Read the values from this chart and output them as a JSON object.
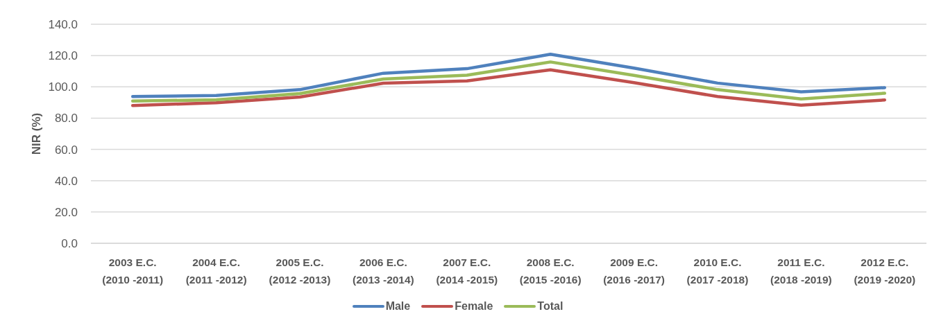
{
  "chart_data": {
    "type": "line",
    "ylabel": "NIR (%)",
    "categories": [
      "2003 E.C. (2010 -2011)",
      "2004 E.C. (2011 -2012)",
      "2005 E.C. (2012 -2013)",
      "2006 E.C. (2013 -2014)",
      "2007 E.C. (2014 -2015)",
      "2008 E.C. (2015 -2016)",
      "2009 E.C. (2016 -2017)",
      "2010 E.C. (2017 -2018)",
      "2011 E.C. (2018 -2019)",
      "2012 E.C. (2019 -2020)"
    ],
    "series": [
      {
        "name": "Male",
        "color": "#4f81bd",
        "values": [
          93.8,
          94.5,
          98.2,
          108.7,
          111.6,
          120.8,
          112.0,
          102.4,
          96.8,
          99.5
        ]
      },
      {
        "name": "Female",
        "color": "#c0504d",
        "values": [
          88.1,
          89.8,
          93.5,
          102.3,
          103.8,
          110.9,
          102.7,
          93.8,
          88.3,
          91.6
        ]
      },
      {
        "name": "Total",
        "color": "#9bbb59",
        "values": [
          90.9,
          91.7,
          95.7,
          105.0,
          107.4,
          115.9,
          107.3,
          98.2,
          92.3,
          95.9
        ]
      }
    ],
    "ylim": [
      0,
      140
    ],
    "yticks": [
      {
        "value": 0,
        "label": "0.0"
      },
      {
        "value": 20,
        "label": "20.0"
      },
      {
        "value": 40,
        "label": "40.0"
      },
      {
        "value": 60,
        "label": "60.0"
      },
      {
        "value": 80,
        "label": "80.0"
      },
      {
        "value": 100,
        "label": "100.0"
      },
      {
        "value": 120,
        "label": "120.0"
      },
      {
        "value": 140,
        "label": "140.0"
      }
    ],
    "grid": "y",
    "legend": "bottom",
    "marker": "none",
    "line_style": "solid"
  }
}
